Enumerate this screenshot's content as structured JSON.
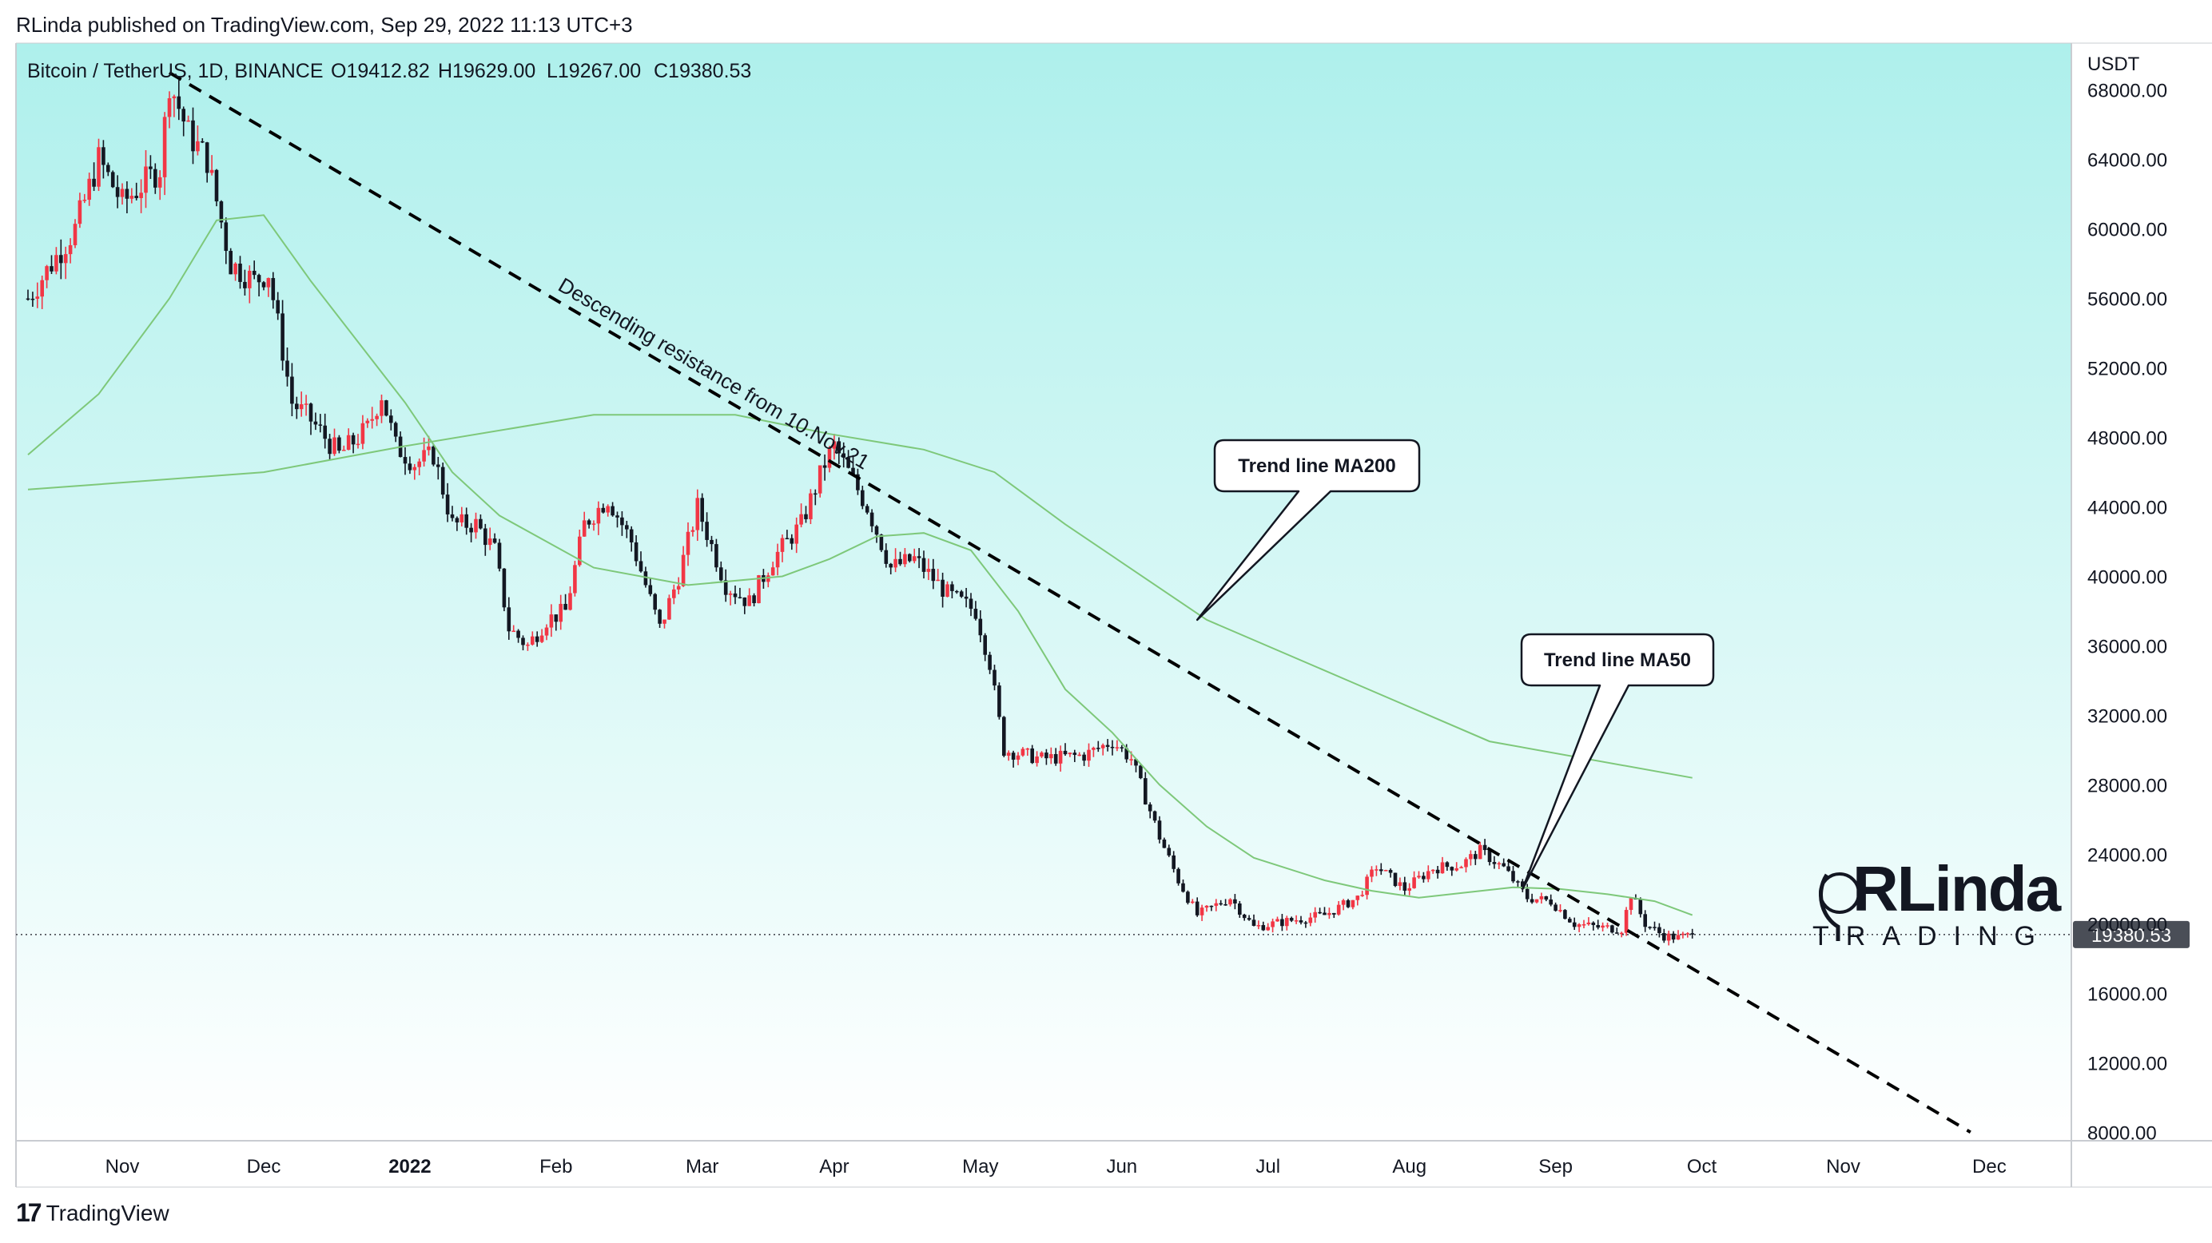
{
  "publisher_line": "RLinda published on TradingView.com, Sep 29, 2022 11:13 UTC+3",
  "footer": {
    "brand": "TradingView",
    "logo_icon": "tradingview-logo-icon"
  },
  "watermark": {
    "big": "RLinda",
    "sub": "TRADING"
  },
  "colors": {
    "bg_top": "#aef0ec",
    "bg_bottom": "#ffffff",
    "up": "#f23645",
    "down": "#131722",
    "ma": "#7ec87a",
    "trend": "#000000",
    "border": "#c9ccd1",
    "price_tag_bg": "#4a4e57"
  },
  "chart_data": {
    "type": "candlestick",
    "title": "Bitcoin / TetherUS, 1D, BINANCE",
    "ohlc_label": {
      "o": "O19412.82",
      "h": "H19629.00",
      "l": "L19267.00",
      "c": "C19380.53"
    },
    "currency": "USDT",
    "last_price": 19380.53,
    "last_price_label": "19380.53",
    "ylim": [
      7600,
      70700
    ],
    "y_ticks": [
      {
        "v": 68000,
        "label": "68000.00"
      },
      {
        "v": 64000,
        "label": "64000.00"
      },
      {
        "v": 60000,
        "label": "60000.00"
      },
      {
        "v": 56000,
        "label": "56000.00"
      },
      {
        "v": 52000,
        "label": "52000.00"
      },
      {
        "v": 48000,
        "label": "48000.00"
      },
      {
        "v": 44000,
        "label": "44000.00"
      },
      {
        "v": 40000,
        "label": "40000.00"
      },
      {
        "v": 36000,
        "label": "36000.00"
      },
      {
        "v": 32000,
        "label": "32000.00"
      },
      {
        "v": 28000,
        "label": "28000.00"
      },
      {
        "v": 24000,
        "label": "24000.00"
      },
      {
        "v": 20000,
        "label": "20000.00"
      },
      {
        "v": 16000,
        "label": "16000.00"
      },
      {
        "v": 12000,
        "label": "12000.00"
      },
      {
        "v": 8000,
        "label": "8000.00"
      }
    ],
    "x_ticks": [
      {
        "label": "Nov",
        "month": 0,
        "bold": false
      },
      {
        "label": "Dec",
        "month": 1,
        "bold": false
      },
      {
        "label": "2022",
        "month": 2,
        "bold": true
      },
      {
        "label": "Feb",
        "month": 3,
        "bold": false
      },
      {
        "label": "Mar",
        "month": 4,
        "bold": false
      },
      {
        "label": "Apr",
        "month": 5,
        "bold": false
      },
      {
        "label": "May",
        "month": 6,
        "bold": false
      },
      {
        "label": "Jun",
        "month": 7,
        "bold": false
      },
      {
        "label": "Jul",
        "month": 8,
        "bold": false
      },
      {
        "label": "Aug",
        "month": 9,
        "bold": false
      },
      {
        "label": "Sep",
        "month": 10,
        "bold": false
      },
      {
        "label": "Oct",
        "month": 11,
        "bold": false
      },
      {
        "label": "Nov",
        "month": 12,
        "bold": false
      },
      {
        "label": "Dec",
        "month": 13,
        "bold": false
      }
    ],
    "price_path": [
      [
        -20,
        56000
      ],
      [
        -10,
        60000
      ],
      [
        -5,
        64000
      ],
      [
        0,
        61500
      ],
      [
        8,
        63500
      ],
      [
        10,
        68500
      ],
      [
        14,
        65500
      ],
      [
        18,
        64000
      ],
      [
        23,
        58000
      ],
      [
        28,
        57000
      ],
      [
        31,
        57500
      ],
      [
        36,
        50000
      ],
      [
        40,
        49000
      ],
      [
        46,
        47000
      ],
      [
        52,
        48500
      ],
      [
        55,
        50500
      ],
      [
        58,
        47500
      ],
      [
        62,
        46500
      ],
      [
        66,
        47000
      ],
      [
        70,
        43000
      ],
      [
        75,
        43000
      ],
      [
        79,
        41500
      ],
      [
        82,
        37000
      ],
      [
        86,
        36000
      ],
      [
        90,
        37500
      ],
      [
        94,
        38000
      ],
      [
        98,
        43000
      ],
      [
        103,
        44500
      ],
      [
        108,
        42000
      ],
      [
        114,
        37000
      ],
      [
        118,
        40000
      ],
      [
        122,
        44000
      ],
      [
        128,
        39500
      ],
      [
        133,
        38500
      ],
      [
        138,
        41000
      ],
      [
        144,
        43000
      ],
      [
        149,
        46500
      ],
      [
        151,
        47500
      ],
      [
        154,
        46000
      ],
      [
        158,
        44000
      ],
      [
        163,
        40500
      ],
      [
        168,
        41000
      ],
      [
        175,
        39000
      ],
      [
        181,
        38000
      ],
      [
        184,
        35000
      ],
      [
        187,
        30000
      ],
      [
        195,
        29500
      ],
      [
        204,
        29700
      ],
      [
        210,
        30500
      ],
      [
        214,
        29500
      ],
      [
        220,
        25000
      ],
      [
        224,
        22500
      ],
      [
        228,
        20500
      ],
      [
        235,
        21500
      ],
      [
        240,
        19800
      ],
      [
        248,
        20200
      ],
      [
        255,
        20500
      ],
      [
        262,
        21500
      ],
      [
        266,
        23300
      ],
      [
        272,
        22000
      ],
      [
        278,
        23200
      ],
      [
        284,
        23400
      ],
      [
        288,
        24200
      ],
      [
        293,
        23200
      ],
      [
        298,
        21500
      ],
      [
        303,
        21300
      ],
      [
        308,
        20000
      ],
      [
        313,
        19800
      ],
      [
        318,
        19700
      ],
      [
        320,
        21700
      ],
      [
        323,
        20000
      ],
      [
        327,
        19300
      ],
      [
        330,
        19200
      ],
      [
        333,
        19380
      ]
    ],
    "series": [
      {
        "name": "MA200",
        "points": [
          [
            -20,
            45000
          ],
          [
            30,
            46000
          ],
          [
            60,
            47500
          ],
          [
            100,
            49300
          ],
          [
            130,
            49300
          ],
          [
            150,
            48200
          ],
          [
            170,
            47300
          ],
          [
            185,
            46000
          ],
          [
            200,
            43000
          ],
          [
            230,
            37500
          ],
          [
            260,
            34000
          ],
          [
            290,
            30500
          ],
          [
            333,
            28400
          ]
        ]
      },
      {
        "name": "MA50",
        "points": [
          [
            -20,
            47000
          ],
          [
            -5,
            50500
          ],
          [
            10,
            56000
          ],
          [
            20,
            60500
          ],
          [
            30,
            60800
          ],
          [
            40,
            57000
          ],
          [
            50,
            53500
          ],
          [
            60,
            50000
          ],
          [
            70,
            46000
          ],
          [
            80,
            43500
          ],
          [
            100,
            40500
          ],
          [
            120,
            39500
          ],
          [
            140,
            40000
          ],
          [
            150,
            41000
          ],
          [
            160,
            42300
          ],
          [
            170,
            42500
          ],
          [
            180,
            41500
          ],
          [
            190,
            38000
          ],
          [
            200,
            33500
          ],
          [
            210,
            31000
          ],
          [
            220,
            28000
          ],
          [
            230,
            25600
          ],
          [
            240,
            23800
          ],
          [
            255,
            22500
          ],
          [
            265,
            21900
          ],
          [
            275,
            21500
          ],
          [
            285,
            21800
          ],
          [
            295,
            22100
          ],
          [
            305,
            22000
          ],
          [
            315,
            21700
          ],
          [
            325,
            21300
          ],
          [
            333,
            20500
          ]
        ]
      }
    ],
    "trend_line": {
      "name": "Descending resistance",
      "from": [
        10,
        69000
      ],
      "to": [
        392,
        8000
      ]
    },
    "annotations": [
      {
        "text": "Descending resistance from 10.Nov.21",
        "type": "line-label"
      },
      {
        "text": "Trend line MA200",
        "type": "callout",
        "target": [
          228,
          37500
        ]
      },
      {
        "text": "Trend line MA50",
        "type": "callout",
        "target": [
          297,
          22000
        ]
      }
    ]
  }
}
